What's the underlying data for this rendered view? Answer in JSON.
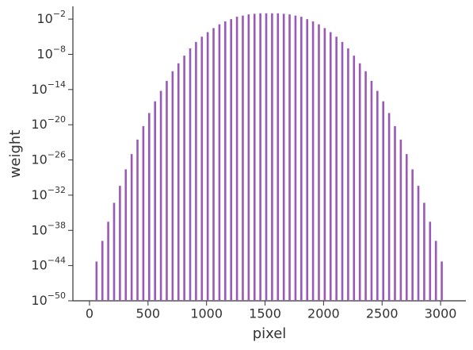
{
  "chart_data": {
    "type": "spike",
    "x_label": "pixel",
    "y_label": "weight",
    "color": "#9b59b6",
    "log_y": true,
    "x": [
      60,
      110,
      160,
      210,
      260,
      310,
      360,
      410,
      460,
      510,
      560,
      610,
      660,
      710,
      760,
      810,
      860,
      910,
      960,
      1010,
      1060,
      1110,
      1160,
      1210,
      1260,
      1310,
      1360,
      1410,
      1460,
      1510,
      1560,
      1610,
      1660,
      1710,
      1760,
      1810,
      1860,
      1910,
      1960,
      2010,
      2060,
      2110,
      2160,
      2210,
      2260,
      2310,
      2360,
      2410,
      2460,
      2510,
      2560,
      2610,
      2660,
      2710,
      2760,
      2810,
      2860,
      2910,
      2960,
      3010
    ],
    "values": [
      5e-44,
      1.6e-40,
      3e-37,
      5e-34,
      4e-31,
      2.5e-28,
      1e-25,
      3e-23,
      6e-21,
      1e-18,
      1e-16,
      6e-15,
      3e-13,
      1.3e-11,
      3e-10,
      6e-09,
      1e-07,
      1.3e-06,
      1e-05,
      6e-05,
      0.0003,
      0.0013,
      0.004,
      0.01,
      0.025,
      0.04,
      0.063,
      0.08,
      0.1,
      0.1,
      0.1,
      0.1,
      0.08,
      0.063,
      0.04,
      0.025,
      0.01,
      0.004,
      0.0013,
      0.0003,
      6e-05,
      1e-05,
      1.3e-06,
      1e-07,
      6e-09,
      3e-10,
      1.3e-11,
      3e-13,
      6e-15,
      1e-16,
      1e-18,
      6e-21,
      3e-23,
      1e-25,
      2.5e-28,
      4e-31,
      5e-34,
      3e-37,
      1.6e-40,
      5e-44
    ],
    "xlim": [
      -142,
      3216
    ],
    "xticks": [
      0,
      500,
      1000,
      1500,
      2000,
      2500,
      3000
    ],
    "ylim": [
      1e-50,
      1.5
    ],
    "yticks": [
      {
        "value": 1e-50,
        "label": "10−50"
      },
      {
        "value": 1e-44,
        "label": "10−44"
      },
      {
        "value": 1e-38,
        "label": "10−38"
      },
      {
        "value": 1e-32,
        "label": "10−32"
      },
      {
        "value": 1e-26,
        "label": "10−26"
      },
      {
        "value": 1e-20,
        "label": "10−20"
      },
      {
        "value": 1e-14,
        "label": "10−14"
      },
      {
        "value": 1e-08,
        "label": "10−8"
      },
      {
        "value": 0.01,
        "label": "10−2"
      }
    ]
  }
}
